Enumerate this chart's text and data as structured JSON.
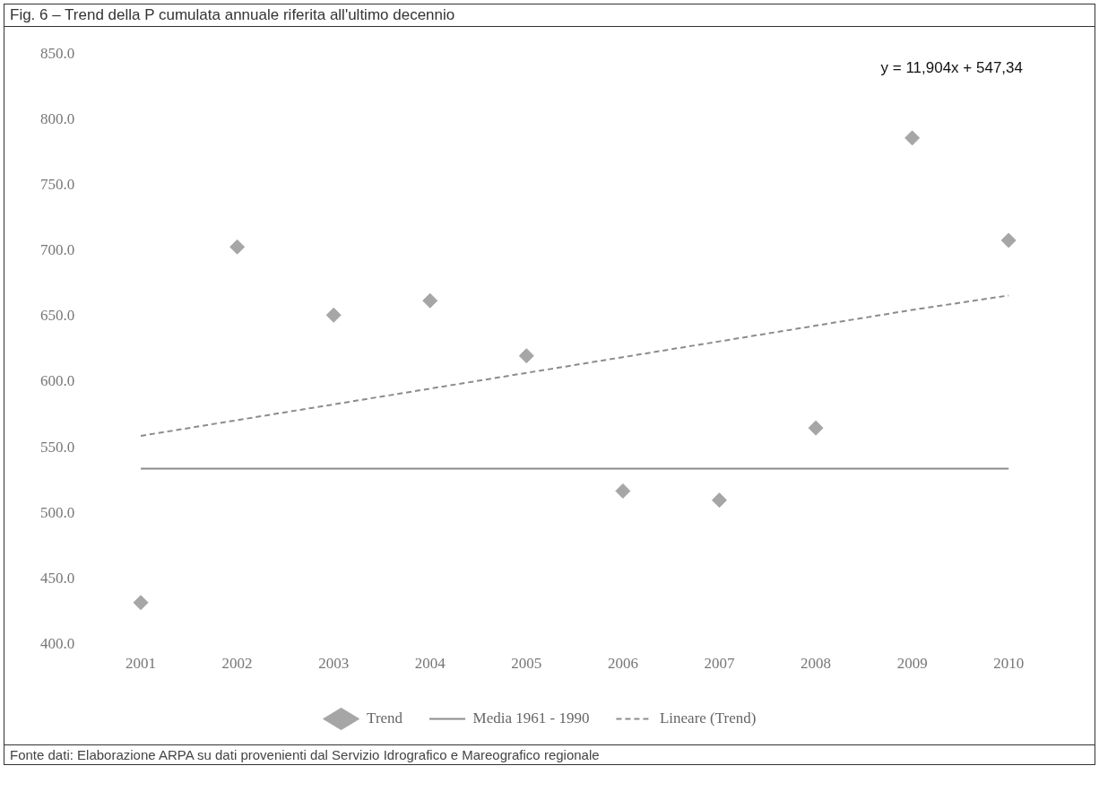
{
  "chart_data": {
    "type": "scatter",
    "title": "Fig. 6 – Trend della P cumulata annuale riferita all'ultimo decennio",
    "categories": [
      "2001",
      "2002",
      "2003",
      "2004",
      "2005",
      "2006",
      "2007",
      "2008",
      "2009",
      "2010"
    ],
    "series": [
      {
        "name": "Trend",
        "marker": "diamond",
        "color": "#a6a6a6",
        "values": [
          432,
          703,
          651,
          662,
          620,
          517,
          510,
          565,
          786,
          708
        ]
      },
      {
        "name": "Media 1961 - 1990",
        "type": "line",
        "marker": "none",
        "color": "#8c8c8c",
        "line_style": "solid",
        "values": [
          534,
          534,
          534,
          534,
          534,
          534,
          534,
          534,
          534,
          534
        ]
      },
      {
        "name": "Lineare (Trend)",
        "type": "line",
        "marker": "none",
        "color": "#8c8c8c",
        "line_style": "dashed",
        "values": [
          559,
          571,
          583,
          595,
          607,
          619,
          631,
          643,
          655,
          666
        ]
      }
    ],
    "ylim": [
      400,
      850
    ],
    "yticks": [
      {
        "value": 400,
        "label": "400.0"
      },
      {
        "value": 450,
        "label": "450.0"
      },
      {
        "value": 500,
        "label": "500.0"
      },
      {
        "value": 550,
        "label": "550.0"
      },
      {
        "value": 600,
        "label": "600.0"
      },
      {
        "value": 650,
        "label": "650.0"
      },
      {
        "value": 700,
        "label": "700.0"
      },
      {
        "value": 750,
        "label": "750.0"
      },
      {
        "value": 800,
        "label": "800.0"
      },
      {
        "value": 850,
        "label": "850.0"
      }
    ],
    "grid": false,
    "legend": "bottom",
    "annotations": [
      "y = 11,904x + 547,34",
      "Fonte dati: Elaborazione ARPA su dati provenienti dal Servizio Idrografico e Mareografico regionale"
    ]
  }
}
